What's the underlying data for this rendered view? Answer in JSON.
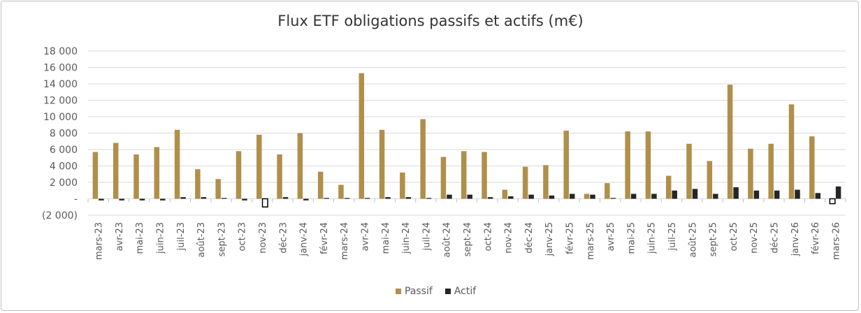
{
  "chart_data": {
    "type": "bar",
    "title": "Flux ETF obligations passifs et actifs (m€)",
    "ylim": [
      -2000,
      18000
    ],
    "yticks": [
      {
        "value": 18000,
        "label": "18 000"
      },
      {
        "value": 16000,
        "label": "16 000"
      },
      {
        "value": 14000,
        "label": "14 000"
      },
      {
        "value": 12000,
        "label": "12 000"
      },
      {
        "value": 10000,
        "label": "10 000"
      },
      {
        "value": 8000,
        "label": "8 000"
      },
      {
        "value": 6000,
        "label": "6 000"
      },
      {
        "value": 4000,
        "label": "4 000"
      },
      {
        "value": 2000,
        "label": "2 000"
      },
      {
        "value": 0,
        "label": "-"
      },
      {
        "value": -2000,
        "label": "(2 000)"
      }
    ],
    "grid": true,
    "legend_position": "bottom",
    "categories": [
      "mars-23",
      "avr-23",
      "mai-23",
      "juin-23",
      "juil-23",
      "août-23",
      "sept-23",
      "oct-23",
      "nov-23",
      "déc-23",
      "janv-24",
      "févr-24",
      "mars-24",
      "avr-24",
      "mai-24",
      "juin-24",
      "juil-24",
      "août-24",
      "sept-24",
      "oct-24",
      "nov-24",
      "déc-24",
      "janv-25",
      "févr-25",
      "mars-25",
      "avr-25",
      "mai-25",
      "juin-25",
      "juil-25",
      "août-25",
      "sept-25",
      "oct-25",
      "nov-25",
      "déc-25",
      "janv-26",
      "févr-26",
      "mars-26"
    ],
    "series": [
      {
        "name": "Passif",
        "color": "#b08f4a",
        "values": [
          5700,
          6800,
          5400,
          6300,
          8400,
          3600,
          2400,
          5800,
          7800,
          5400,
          8000,
          3300,
          1700,
          15300,
          8400,
          3200,
          9700,
          5100,
          5800,
          5700,
          1100,
          3900,
          4100,
          8300,
          600,
          1900,
          8200,
          8200,
          2800,
          6700,
          4600,
          13900,
          6100,
          6700,
          11500,
          7600,
          -600
        ]
      },
      {
        "name": "Actif",
        "color": "#262626",
        "values": [
          -200,
          -200,
          -200,
          -200,
          200,
          200,
          100,
          -200,
          -1000,
          200,
          -200,
          100,
          100,
          100,
          200,
          200,
          100,
          500,
          500,
          200,
          300,
          500,
          400,
          600,
          500,
          100,
          600,
          600,
          1000,
          1200,
          600,
          1400,
          1000,
          1000,
          1100,
          700,
          1500
        ]
      }
    ]
  }
}
